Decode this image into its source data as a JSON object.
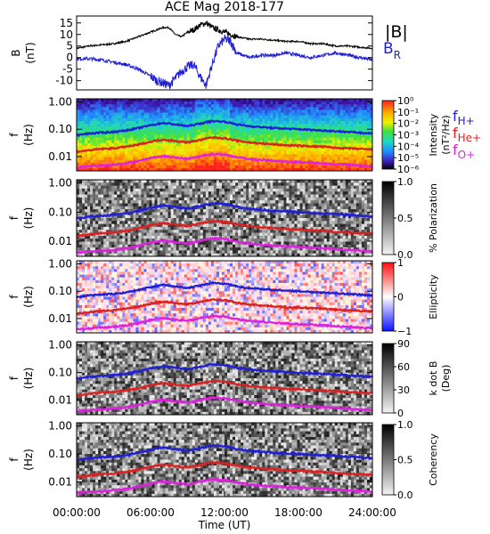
{
  "title": "ACE Mag 2018-177",
  "chart_data": [
    {
      "type": "line",
      "ylabel": "B (nT)",
      "ylim": [
        -14,
        18
      ],
      "yticks": [
        15,
        10,
        5,
        0,
        -5,
        -10
      ],
      "xlim": [
        0,
        24
      ],
      "legend": [
        "|B|",
        "BR"
      ],
      "series": [
        {
          "name": "|B|",
          "color": "#000000",
          "x": [
            0,
            1,
            2,
            3,
            4,
            5,
            6,
            6.5,
            7,
            7.5,
            8,
            8.5,
            9,
            9.5,
            10,
            10.5,
            11,
            11.5,
            12,
            12.5,
            13,
            14,
            15,
            16,
            17,
            18,
            19,
            20,
            21,
            22,
            23,
            24
          ],
          "values": [
            4,
            5,
            5.5,
            6,
            7,
            9,
            11,
            12,
            13,
            13,
            10,
            9,
            11,
            12,
            14,
            15,
            13,
            12,
            11,
            10,
            9,
            8,
            8,
            7.5,
            7,
            7,
            6,
            6,
            5,
            5,
            4.5,
            4
          ]
        },
        {
          "name": "BR",
          "color": "#1f1fd6",
          "x": [
            0,
            1,
            2,
            3,
            4,
            5,
            6,
            6.5,
            7,
            7.5,
            8,
            8.5,
            9,
            9.5,
            10,
            10.5,
            11,
            11.5,
            12,
            12.5,
            13,
            14,
            15,
            16,
            17,
            18,
            19,
            20,
            21,
            22,
            23,
            24
          ],
          "values": [
            -0.5,
            -0.5,
            -1,
            -2,
            -3,
            -5,
            -8,
            -10,
            -11,
            -12,
            -9,
            -6,
            -4,
            -3,
            -8,
            -12,
            -3,
            5,
            8,
            7,
            2,
            0,
            1,
            1,
            2,
            1,
            0,
            1,
            2,
            1,
            0,
            -1
          ]
        }
      ]
    },
    {
      "type": "heatmap",
      "ylabel": "f (Hz)",
      "yticks": [
        "1.00",
        "0.10",
        "0.01"
      ],
      "colorbar": {
        "label": "Intensity (nT²/Hz)",
        "ticks": [
          "10⁰",
          "10⁻¹",
          "10⁻²",
          "10⁻³",
          "10⁻⁴",
          "10⁻⁵",
          "10⁻⁶"
        ]
      },
      "legend": [
        "fH+",
        "fHe+",
        "fO+"
      ]
    },
    {
      "type": "heatmap",
      "ylabel": "f (Hz)",
      "yticks": [
        "1.00",
        "0.10",
        "0.01"
      ],
      "colorbar": {
        "label": "% Polarization",
        "ticks": [
          "1.0",
          "0.5",
          "0.0"
        ]
      }
    },
    {
      "type": "heatmap",
      "ylabel": "f (Hz)",
      "yticks": [
        "1.00",
        "0.10",
        "0.01"
      ],
      "colorbar": {
        "label": "Ellipticity",
        "ticks": [
          "1",
          "0",
          "−1"
        ]
      }
    },
    {
      "type": "heatmap",
      "ylabel": "f (Hz)",
      "yticks": [
        "1.00",
        "0.10",
        "0.01"
      ],
      "colorbar": {
        "label": "k dot B (Deg)",
        "ticks": [
          "90",
          "60",
          "30",
          "0"
        ]
      }
    },
    {
      "type": "heatmap",
      "ylabel": "f (Hz)",
      "yticks": [
        "1.00",
        "0.10",
        "0.01"
      ],
      "colorbar": {
        "label": "Coherency",
        "ticks": [
          "1.0",
          "0.5",
          "0.0"
        ]
      }
    }
  ],
  "gyrofrequency_lines": {
    "x": [
      0,
      1,
      2,
      3,
      4,
      5,
      6,
      7,
      8,
      9,
      10,
      11,
      12,
      13,
      14,
      15,
      16,
      17,
      18,
      19,
      20,
      21,
      22,
      23,
      24
    ],
    "H": [
      0.06,
      0.07,
      0.075,
      0.08,
      0.09,
      0.11,
      0.14,
      0.17,
      0.15,
      0.13,
      0.16,
      0.2,
      0.19,
      0.15,
      0.13,
      0.12,
      0.11,
      0.105,
      0.1,
      0.095,
      0.09,
      0.085,
      0.08,
      0.075,
      0.07
    ],
    "He": [
      0.015,
      0.017,
      0.019,
      0.02,
      0.023,
      0.027,
      0.035,
      0.042,
      0.037,
      0.033,
      0.04,
      0.05,
      0.047,
      0.038,
      0.033,
      0.03,
      0.028,
      0.026,
      0.025,
      0.024,
      0.023,
      0.021,
      0.02,
      0.019,
      0.018
    ],
    "O": [
      0.004,
      0.0044,
      0.0047,
      0.005,
      0.0056,
      0.0068,
      0.0088,
      0.0105,
      0.0092,
      0.0082,
      0.01,
      0.0125,
      0.0118,
      0.0095,
      0.0082,
      0.0075,
      0.007,
      0.0066,
      0.0063,
      0.006,
      0.0057,
      0.0053,
      0.005,
      0.0047,
      0.0045
    ]
  },
  "xaxis": {
    "label": "Time (UT)",
    "ticks": [
      "00:00:00",
      "06:00:00",
      "12:00:00",
      "18:00:00",
      "24:00:00"
    ]
  },
  "colors": {
    "H": "#1f1fd6",
    "He": "#dd2020",
    "O": "#e020e0"
  }
}
